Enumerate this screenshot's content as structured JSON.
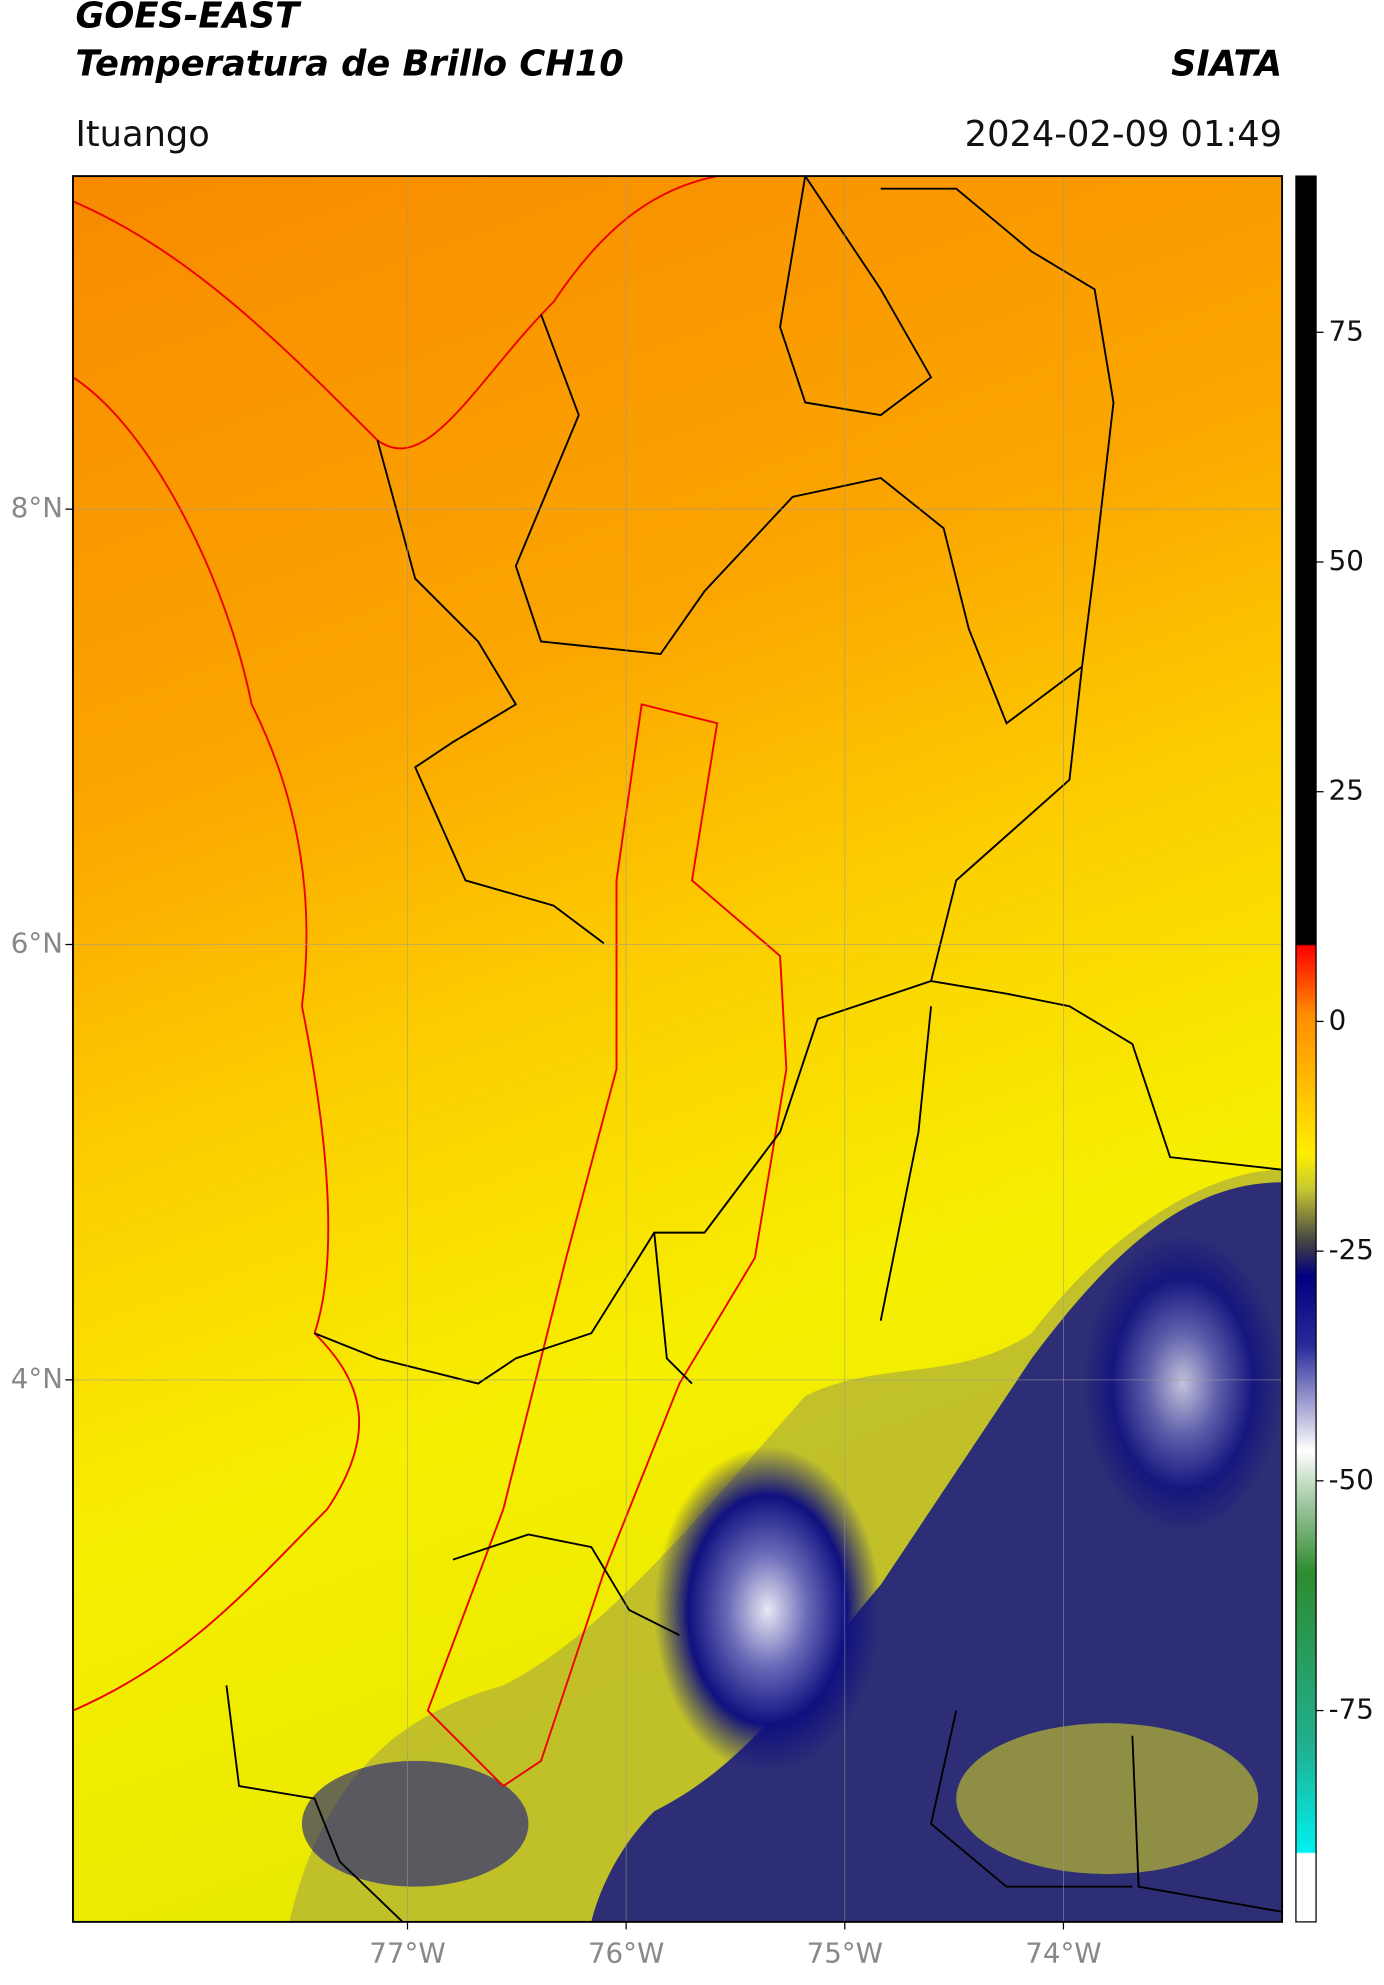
{
  "header": {
    "source": "GOES-EAST",
    "product": "Temperatura de Brillo CH10",
    "agency": "SIATA",
    "region": "Ituango",
    "datetime": "2024-02-09 01:49"
  },
  "map": {
    "xlim": [
      -78.53,
      -73.0
    ],
    "ylim": [
      1.51,
      9.53
    ],
    "xticks": [
      {
        "value": -77,
        "label": "77°W"
      },
      {
        "value": -76,
        "label": "76°W"
      },
      {
        "value": -75,
        "label": "75°W"
      },
      {
        "value": -74,
        "label": "74°W"
      }
    ],
    "yticks": [
      {
        "value": 8,
        "label": "8°N"
      },
      {
        "value": 6,
        "label": "6°N"
      },
      {
        "value": 4,
        "label": "4°N"
      }
    ],
    "grid": true
  },
  "colorbar": {
    "lim": [
      -98,
      92
    ],
    "ticks": [
      75,
      50,
      25,
      0,
      -25,
      -50,
      -75
    ]
  }
}
